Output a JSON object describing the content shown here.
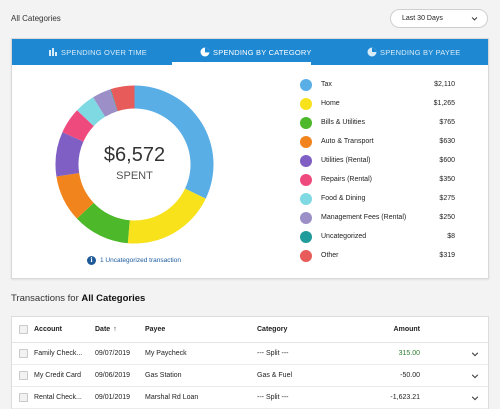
{
  "header": {
    "title": "All Categories",
    "range_select": "Last 30 Days"
  },
  "tabs": [
    {
      "label": "SPENDING OVER TIME",
      "icon": "bar-chart-icon",
      "active": false
    },
    {
      "label": "SPENDING BY CATEGORY",
      "icon": "pie-chart-icon",
      "active": true
    },
    {
      "label": "SPENDING BY PAYEE",
      "icon": "pie-chart-icon",
      "active": false
    }
  ],
  "summary": {
    "total": "$6,572",
    "total_label": "SPENT",
    "uncategorized_link": "1 Uncategorized transaction"
  },
  "chart_data": {
    "type": "pie",
    "categories": [
      "Tax",
      "Home",
      "Bills & Utilities",
      "Auto & Transport",
      "Utilities (Rental)",
      "Repairs (Rental)",
      "Food & Dining",
      "Management Fees (Rental)",
      "Uncategorized",
      "Other"
    ],
    "values": [
      2110,
      1265,
      765,
      630,
      600,
      350,
      275,
      250,
      8,
      319
    ],
    "labels": [
      "$2,110",
      "$1,265",
      "$765",
      "$630",
      "$600",
      "$350",
      "$275",
      "$250",
      "$8",
      "$319"
    ],
    "colors": [
      "#5aaee6",
      "#f7e21c",
      "#4cb82a",
      "#f2841d",
      "#7f5fc4",
      "#ee4a7e",
      "#7fd9e3",
      "#9c8fc7",
      "#1f9b9b",
      "#e85b5b"
    ],
    "center_total": "$6,572",
    "center_label": "SPENT",
    "legend": "right"
  },
  "transactions": {
    "heading_prefix": "Transactions for",
    "heading_bold": "All Categories",
    "columns": {
      "account": "Account",
      "date": "Date",
      "payee": "Payee",
      "category": "Category",
      "amount": "Amount"
    },
    "rows": [
      {
        "account": "Family Check...",
        "date": "09/07/2019",
        "payee": "My Paycheck",
        "category": "--- Split ---",
        "amount": "315.00",
        "positive": true
      },
      {
        "account": "My Credit Card",
        "date": "09/06/2019",
        "payee": "Gas Station",
        "category": "Gas & Fuel",
        "amount": "-50.00",
        "positive": false
      },
      {
        "account": "Rental Check...",
        "date": "09/01/2019",
        "payee": "Marshal Rd Loan",
        "category": "--- Split ---",
        "amount": "-1,623.21",
        "positive": false
      }
    ]
  }
}
